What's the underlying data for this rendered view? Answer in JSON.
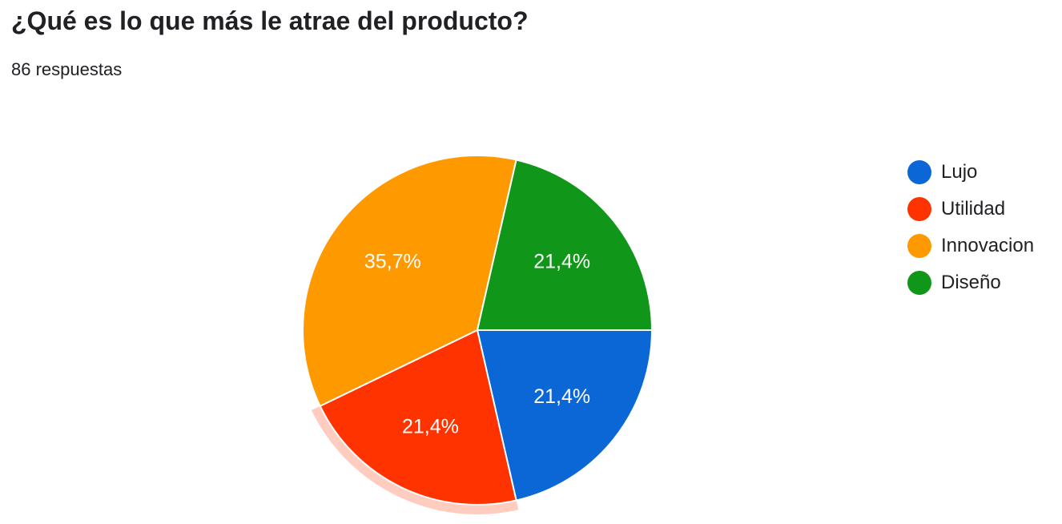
{
  "header": {
    "title": "¿Qué es lo que más le atrae del producto?",
    "responses": "86 respuestas"
  },
  "chart_data": {
    "type": "pie",
    "title": "¿Qué es lo que más le atrae del producto?",
    "legend_position": "right",
    "categories": [
      "Lujo",
      "Utilidad",
      "Innovacion",
      "Diseño"
    ],
    "values": [
      21.4,
      21.4,
      35.7,
      21.4
    ],
    "labels": [
      "21,4%",
      "21,4%",
      "35,7%",
      "21,4%"
    ],
    "colors": [
      "#0b66d6",
      "#ff3300",
      "#ff9900",
      "#109618"
    ],
    "highlighted_slice": "Utilidad"
  }
}
